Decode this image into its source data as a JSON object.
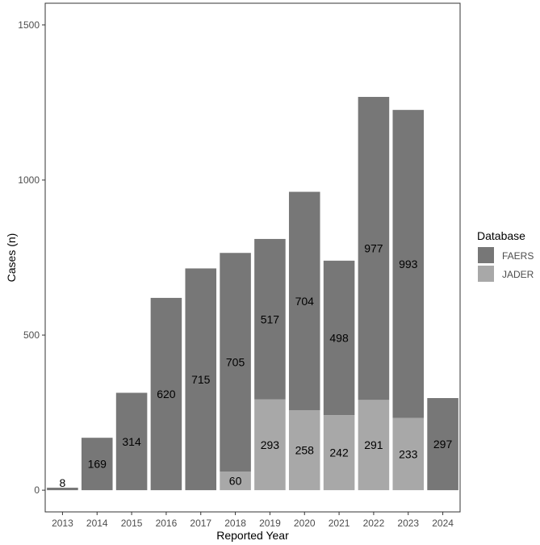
{
  "chart_data": {
    "type": "bar",
    "stacked": true,
    "categories": [
      "2013",
      "2014",
      "2015",
      "2016",
      "2017",
      "2018",
      "2019",
      "2020",
      "2021",
      "2022",
      "2023",
      "2024"
    ],
    "series": [
      {
        "name": "FAERS",
        "color": "#777777",
        "values": [
          8,
          169,
          314,
          620,
          715,
          705,
          517,
          704,
          498,
          977,
          993,
          297
        ]
      },
      {
        "name": "JADER",
        "color": "#a8a8a8",
        "values": [
          0,
          0,
          0,
          0,
          0,
          60,
          293,
          258,
          242,
          291,
          233,
          0
        ]
      }
    ],
    "title": "",
    "xlabel": "Reported Year",
    "ylabel": "Cases (n)",
    "ylim": [
      -70,
      1570
    ],
    "yticks": [
      0,
      500,
      1000,
      1500
    ],
    "legend": {
      "title": "Database",
      "position": "right"
    },
    "grid": false
  }
}
